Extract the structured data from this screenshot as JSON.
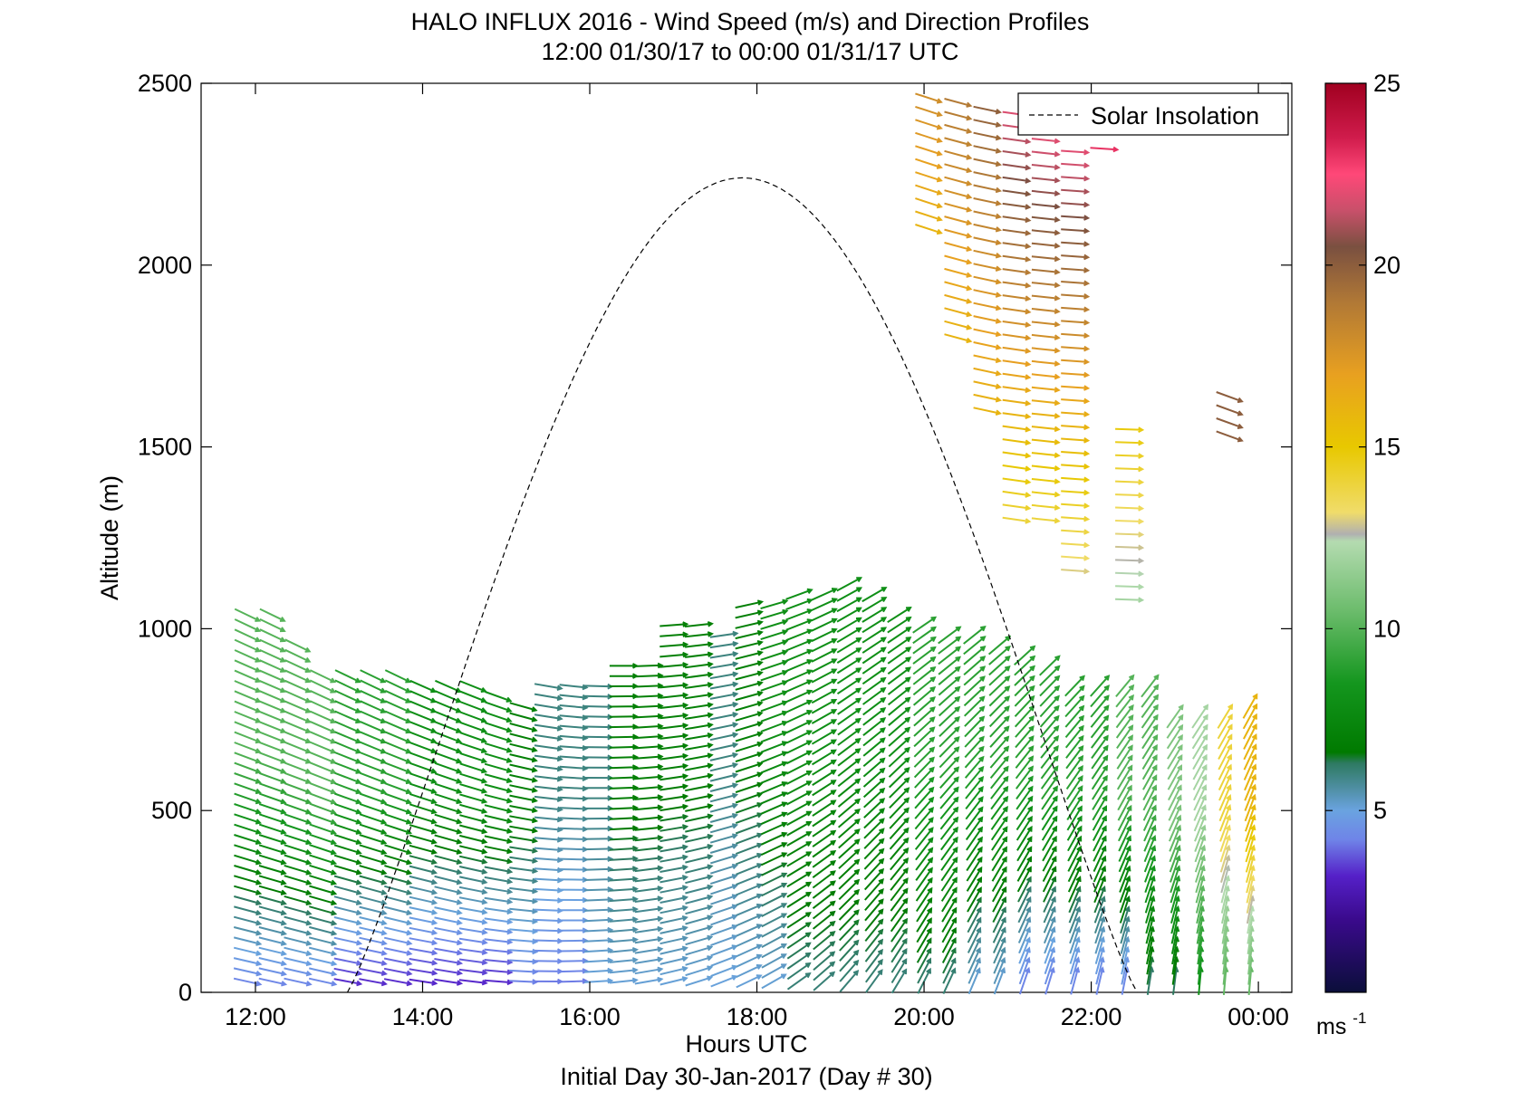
{
  "chart_data": {
    "type": "wind-barb profile (quiver)",
    "title": "HALO INFLUX 2016 - Wind Speed (m/s) and Direction Profiles",
    "subtitle": "12:00 01/30/17 to 00:00 01/31/17  UTC",
    "xlabel": "Hours UTC",
    "xlabel2": "Initial Day 30-Jan-2017 (Day # 30)",
    "ylabel": "Altitude (m)",
    "xlim_hours": [
      11.35,
      24.4
    ],
    "ylim": [
      0,
      2500
    ],
    "x_ticks": [
      {
        "value": 12,
        "label": "12:00"
      },
      {
        "value": 14,
        "label": "14:00"
      },
      {
        "value": 16,
        "label": "16:00"
      },
      {
        "value": 18,
        "label": "18:00"
      },
      {
        "value": 20,
        "label": "20:00"
      },
      {
        "value": 22,
        "label": "22:00"
      },
      {
        "value": 24,
        "label": "00:00"
      }
    ],
    "y_ticks": [
      {
        "value": 0,
        "label": "0"
      },
      {
        "value": 500,
        "label": "500"
      },
      {
        "value": 1000,
        "label": "1000"
      },
      {
        "value": 1500,
        "label": "1500"
      },
      {
        "value": 2000,
        "label": "2000"
      },
      {
        "value": 2500,
        "label": "2500"
      }
    ],
    "legend": {
      "placement": "top-right",
      "entries": [
        {
          "label": "Solar Insolation",
          "style": "dashed",
          "color": "#000000"
        }
      ]
    },
    "solar_insolation": {
      "start_hour": 13.1,
      "end_hour": 22.55,
      "peak_hour": 17.85,
      "peak_altitude": 2240
    },
    "colorbar": {
      "range": [
        0,
        25
      ],
      "unit_label": "ms",
      "unit_exponent": "-1",
      "ticks": [
        {
          "value": 5,
          "label": "5"
        },
        {
          "value": 10,
          "label": "10"
        },
        {
          "value": 15,
          "label": "15"
        },
        {
          "value": 20,
          "label": "20"
        },
        {
          "value": 25,
          "label": "25"
        }
      ],
      "stops": [
        {
          "v": 0,
          "color": "#0b0e3a"
        },
        {
          "v": 2,
          "color": "#3a0a8c"
        },
        {
          "v": 3.2,
          "color": "#5520c8"
        },
        {
          "v": 4.2,
          "color": "#6f84e8"
        },
        {
          "v": 5.0,
          "color": "#6aa3e0"
        },
        {
          "v": 5.6,
          "color": "#4f8fa4"
        },
        {
          "v": 6.3,
          "color": "#2e7a62"
        },
        {
          "v": 6.6,
          "color": "#007a00"
        },
        {
          "v": 8.5,
          "color": "#14961e"
        },
        {
          "v": 10.5,
          "color": "#6cbc6c"
        },
        {
          "v": 12.4,
          "color": "#b4dbb0"
        },
        {
          "v": 12.6,
          "color": "#b0b0b0"
        },
        {
          "v": 13.2,
          "color": "#f0dc6a"
        },
        {
          "v": 15,
          "color": "#e8c800"
        },
        {
          "v": 17,
          "color": "#e8a020"
        },
        {
          "v": 19,
          "color": "#b07836"
        },
        {
          "v": 20.5,
          "color": "#7a5040"
        },
        {
          "v": 21.5,
          "color": "#c8506a"
        },
        {
          "v": 22.5,
          "color": "#ff4878"
        },
        {
          "v": 23.5,
          "color": "#d01c4c"
        },
        {
          "v": 25,
          "color": "#a00020"
        }
      ]
    },
    "grid": false,
    "wind_profiles": [
      {
        "t": 11.9,
        "top": 1060,
        "spd_lo": 4,
        "spd_hi": 10,
        "dir_lo": -12,
        "dir_hi": -26
      },
      {
        "t": 12.2,
        "top": 1040,
        "spd_lo": 4,
        "spd_hi": 10,
        "dir_lo": -12,
        "dir_hi": -26
      },
      {
        "t": 12.5,
        "top": 960,
        "spd_lo": 4,
        "spd_hi": 10,
        "dir_lo": -12,
        "dir_hi": -26
      },
      {
        "t": 12.8,
        "top": 880,
        "spd_lo": 4,
        "spd_hi": 10,
        "dir_lo": -12,
        "dir_hi": -26
      },
      {
        "t": 13.1,
        "top": 880,
        "spd_lo": 3,
        "spd_hi": 9,
        "dir_lo": -10,
        "dir_hi": -26
      },
      {
        "t": 13.4,
        "top": 880,
        "spd_lo": 3,
        "spd_hi": 9,
        "dir_lo": -10,
        "dir_hi": -26
      },
      {
        "t": 13.7,
        "top": 880,
        "spd_lo": 3,
        "spd_hi": 9,
        "dir_lo": -10,
        "dir_hi": -26
      },
      {
        "t": 14.0,
        "top": 860,
        "spd_lo": 3,
        "spd_hi": 8,
        "dir_lo": -8,
        "dir_hi": -24
      },
      {
        "t": 14.3,
        "top": 860,
        "spd_lo": 3,
        "spd_hi": 8,
        "dir_lo": -8,
        "dir_hi": -24
      },
      {
        "t": 14.6,
        "top": 850,
        "spd_lo": 3,
        "spd_hi": 8,
        "dir_lo": -6,
        "dir_hi": -22
      },
      {
        "t": 14.9,
        "top": 830,
        "spd_lo": 3,
        "spd_hi": 8,
        "dir_lo": -4,
        "dir_hi": -20
      },
      {
        "t": 15.2,
        "top": 800,
        "spd_lo": 4,
        "spd_hi": 7,
        "dir_lo": -2,
        "dir_hi": -16
      },
      {
        "t": 15.5,
        "top": 860,
        "spd_lo": 4,
        "spd_hi": 6,
        "dir_lo": 0,
        "dir_hi": -10
      },
      {
        "t": 15.8,
        "top": 860,
        "spd_lo": 4,
        "spd_hi": 6,
        "dir_lo": 2,
        "dir_hi": -6
      },
      {
        "t": 16.1,
        "top": 860,
        "spd_lo": 5,
        "spd_hi": 6,
        "dir_lo": 4,
        "dir_hi": -2
      },
      {
        "t": 16.4,
        "top": 900,
        "spd_lo": 5,
        "spd_hi": 7,
        "dir_lo": 6,
        "dir_hi": 0
      },
      {
        "t": 16.7,
        "top": 900,
        "spd_lo": 5,
        "spd_hi": 7,
        "dir_lo": 10,
        "dir_hi": 2
      },
      {
        "t": 17.0,
        "top": 1020,
        "spd_lo": 5,
        "spd_hi": 7,
        "dir_lo": 14,
        "dir_hi": 4
      },
      {
        "t": 17.3,
        "top": 1010,
        "spd_lo": 5,
        "spd_hi": 7,
        "dir_lo": 18,
        "dir_hi": 6
      },
      {
        "t": 17.6,
        "top": 1000,
        "spd_lo": 5,
        "spd_hi": 6,
        "dir_lo": 22,
        "dir_hi": 8
      },
      {
        "t": 17.9,
        "top": 1090,
        "spd_lo": 5,
        "spd_hi": 7,
        "dir_lo": 26,
        "dir_hi": 12
      },
      {
        "t": 18.2,
        "top": 1090,
        "spd_lo": 5,
        "spd_hi": 8,
        "dir_lo": 30,
        "dir_hi": 16
      },
      {
        "t": 18.5,
        "top": 1100,
        "spd_lo": 6,
        "spd_hi": 8,
        "dir_lo": 36,
        "dir_hi": 20
      },
      {
        "t": 18.8,
        "top": 1100,
        "spd_lo": 6,
        "spd_hi": 8,
        "dir_lo": 42,
        "dir_hi": 24
      },
      {
        "t": 19.1,
        "top": 1130,
        "spd_lo": 6,
        "spd_hi": 8,
        "dir_lo": 50,
        "dir_hi": 28
      },
      {
        "t": 19.4,
        "top": 1100,
        "spd_lo": 6,
        "spd_hi": 8,
        "dir_lo": 55,
        "dir_hi": 30
      },
      {
        "t": 19.7,
        "top": 1060,
        "spd_lo": 6,
        "spd_hi": 8,
        "dir_lo": 60,
        "dir_hi": 32
      },
      {
        "t": 20.0,
        "top": 1020,
        "spd_lo": 6,
        "spd_hi": 9,
        "dir_lo": 64,
        "dir_hi": 34
      },
      {
        "t": 20.3,
        "top": 1000,
        "spd_lo": 6,
        "spd_hi": 9,
        "dir_lo": 66,
        "dir_hi": 36
      },
      {
        "t": 20.6,
        "top": 1000,
        "spd_lo": 5,
        "spd_hi": 9,
        "dir_lo": 68,
        "dir_hi": 38
      },
      {
        "t": 20.9,
        "top": 960,
        "spd_lo": 5,
        "spd_hi": 9,
        "dir_lo": 70,
        "dir_hi": 40
      },
      {
        "t": 21.2,
        "top": 940,
        "spd_lo": 4,
        "spd_hi": 9,
        "dir_lo": 72,
        "dir_hi": 42
      },
      {
        "t": 21.5,
        "top": 900,
        "spd_lo": 4,
        "spd_hi": 9,
        "dir_lo": 74,
        "dir_hi": 44
      },
      {
        "t": 21.8,
        "top": 850,
        "spd_lo": 4,
        "spd_hi": 9,
        "dir_lo": 76,
        "dir_hi": 46
      },
      {
        "t": 22.1,
        "top": 850,
        "spd_lo": 4,
        "spd_hi": 9,
        "dir_lo": 78,
        "dir_hi": 48
      },
      {
        "t": 22.4,
        "top": 850,
        "spd_lo": 4,
        "spd_hi": 10,
        "dir_lo": 80,
        "dir_hi": 50
      },
      {
        "t": 22.7,
        "top": 850,
        "spd_lo": 6,
        "spd_hi": 10,
        "dir_lo": 82,
        "dir_hi": 52
      },
      {
        "t": 23.0,
        "top": 780,
        "spd_lo": 6,
        "spd_hi": 11,
        "dir_lo": 84,
        "dir_hi": 54
      },
      {
        "t": 23.3,
        "top": 760,
        "spd_lo": 8,
        "spd_hi": 12,
        "dir_lo": 86,
        "dir_hi": 56
      },
      {
        "t": 23.6,
        "top": 780,
        "spd_lo": 10,
        "spd_hi": 14,
        "dir_lo": 86,
        "dir_hi": 58
      },
      {
        "t": 23.9,
        "top": 800,
        "spd_lo": 10,
        "spd_hi": 16,
        "dir_lo": 86,
        "dir_hi": 60
      }
    ],
    "wind_upper": [
      {
        "t": 20.05,
        "bot": 2100,
        "top": 2480,
        "spd_lo": 16,
        "spd_hi": 18,
        "dir": -18
      },
      {
        "t": 20.4,
        "bot": 1800,
        "top": 2470,
        "spd_lo": 16,
        "spd_hi": 19,
        "dir": -15
      },
      {
        "t": 20.75,
        "bot": 1600,
        "top": 2460,
        "spd_lo": 16,
        "spd_hi": 20,
        "dir": -12
      },
      {
        "t": 21.1,
        "bot": 1300,
        "top": 2440,
        "spd_lo": 14,
        "spd_hi": 22,
        "dir": -8
      },
      {
        "t": 21.45,
        "bot": 1300,
        "top": 2360,
        "spd_lo": 14,
        "spd_hi": 22,
        "dir": -6
      },
      {
        "t": 21.8,
        "bot": 1160,
        "top": 2320,
        "spd_lo": 13,
        "spd_hi": 22,
        "dir": -4
      },
      {
        "t": 22.15,
        "bot": 2320,
        "top": 2320,
        "spd_lo": 23,
        "spd_hi": 23,
        "dir": -4
      },
      {
        "t": 22.45,
        "bot": 1080,
        "top": 1580,
        "spd_lo": 12,
        "spd_hi": 15,
        "dir": -2
      },
      {
        "t": 23.65,
        "bot": 1530,
        "top": 1650,
        "spd_lo": 20,
        "spd_hi": 20,
        "dir": -20
      }
    ]
  }
}
